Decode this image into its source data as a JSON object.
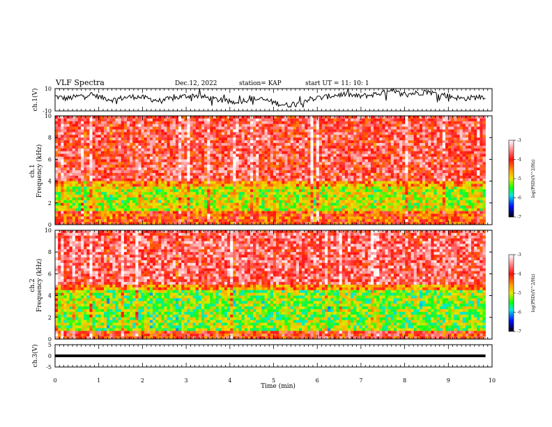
{
  "header": {
    "title": "VLF Spectra",
    "date": "Dec.12, 2022",
    "station": "station= KAP",
    "start": "start  UT =   11: 10: 1"
  },
  "chart_data": [
    {
      "type": "line",
      "panel": "ch1-waveform",
      "ylabel": "ch.1(V)",
      "ylim": [
        -10,
        10
      ],
      "yticks": [
        "10",
        "-10"
      ],
      "x_range_min": [
        0,
        9.85
      ],
      "series": [
        {
          "values": [
            3,
            1,
            3,
            5,
            2,
            0,
            2,
            3,
            1,
            -1,
            1,
            3,
            4,
            2,
            0,
            -2,
            -1,
            1,
            0,
            -3,
            -5,
            -2,
            1,
            2,
            4,
            5,
            3,
            4,
            6,
            7,
            5,
            6,
            7,
            5,
            3,
            1,
            2,
            3
          ]
        }
      ]
    },
    {
      "type": "heatmap",
      "panel": "ch1-spectrogram",
      "ylabel": "ch.1\nFrequency (kHz)",
      "ylim": [
        0,
        10
      ],
      "yticks": [
        "0",
        "2",
        "4",
        "6",
        "8",
        "10"
      ],
      "x_range_min": [
        0,
        9.85
      ],
      "colorbar": {
        "label": "log(PSD)(V^2/Hz)",
        "range": [
          -7,
          -3
        ],
        "ticks": [
          "-3",
          "-4",
          "-5",
          "-6",
          "-7"
        ]
      },
      "bands": [
        {
          "freq_khz": [
            4,
            10
          ],
          "log_psd": -3.8
        },
        {
          "freq_khz": [
            1.2,
            3.6
          ],
          "log_psd": -5.0
        },
        {
          "freq_khz": [
            0,
            1.2
          ],
          "log_psd": -4.2
        }
      ]
    },
    {
      "type": "heatmap",
      "panel": "ch2-spectrogram",
      "ylabel": "ch.2\nFrequency (kHz)",
      "ylim": [
        0,
        10
      ],
      "yticks": [
        "0",
        "2",
        "4",
        "6",
        "8",
        "10"
      ],
      "x_range_min": [
        0,
        9.85
      ],
      "colorbar": {
        "label": "log(PSD)(V^2/Hz)",
        "range": [
          -7,
          -3
        ],
        "ticks": [
          "-3",
          "-4",
          "-5",
          "-6",
          "-7"
        ]
      },
      "bands": [
        {
          "freq_khz": [
            5,
            10
          ],
          "log_psd": -3.7
        },
        {
          "freq_khz": [
            0.8,
            4.6
          ],
          "log_psd": -5.2
        },
        {
          "freq_khz": [
            0,
            0.8
          ],
          "log_psd": -4.0
        }
      ]
    },
    {
      "type": "line",
      "panel": "ch3-waveform",
      "ylabel": "ch.3(V)",
      "ylim": [
        -5,
        5
      ],
      "yticks": [
        "5",
        "0",
        "-5"
      ],
      "x_range_min": [
        0,
        9.85
      ],
      "series": [
        {
          "values": [
            0,
            0
          ]
        }
      ]
    }
  ],
  "xaxis": {
    "label": "Time (min)",
    "ticks": [
      "0",
      "1",
      "2",
      "3",
      "4",
      "5",
      "6",
      "7",
      "8",
      "9",
      "10"
    ],
    "range": [
      0,
      10
    ]
  },
  "colors": {
    "red": "#ff1a10",
    "orange": "#ff9a00",
    "yellow": "#e8e600",
    "green": "#20ff20",
    "cyan": "#00e6d0",
    "blue": "#0010ff",
    "navy": "#000018"
  }
}
